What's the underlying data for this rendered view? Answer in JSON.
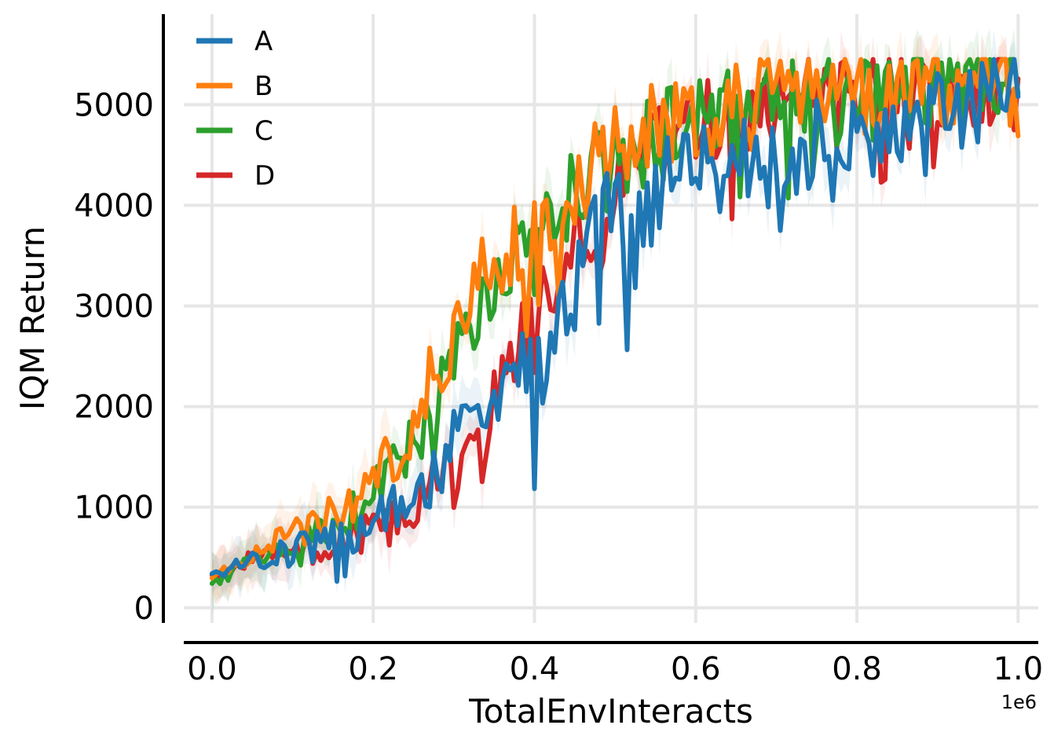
{
  "chart_data": {
    "type": "line",
    "xlabel": "TotalEnvInteracts",
    "ylabel": "IQM Return",
    "x_offset_label": "1e6",
    "xlim": [
      -0.035,
      1.025
    ],
    "ylim": [
      -150,
      5900
    ],
    "x_ticks": [
      0.0,
      0.2,
      0.4,
      0.6,
      0.8,
      1.0
    ],
    "x_tick_labels": [
      "0.0",
      "0.2",
      "0.4",
      "0.6",
      "0.8",
      "1.0"
    ],
    "y_ticks": [
      0,
      1000,
      2000,
      3000,
      4000,
      5000
    ],
    "y_tick_labels": [
      "0",
      "1000",
      "2000",
      "3000",
      "4000",
      "5000"
    ],
    "grid": true,
    "legend_position": "top-left",
    "series": [
      {
        "name": "A",
        "color": "#1f77b4",
        "x": [
          0.0,
          0.05,
          0.1,
          0.15,
          0.18,
          0.2,
          0.22,
          0.25,
          0.28,
          0.3,
          0.32,
          0.35,
          0.38,
          0.4,
          0.42,
          0.45,
          0.48,
          0.5,
          0.52,
          0.55,
          0.58,
          0.6,
          0.62,
          0.65,
          0.68,
          0.7,
          0.72,
          0.75,
          0.78,
          0.8,
          0.82,
          0.85,
          0.88,
          0.9,
          0.92,
          0.95,
          0.98,
          1.0
        ],
        "y": [
          330,
          460,
          560,
          700,
          760,
          1000,
          950,
          1250,
          1350,
          1700,
          1700,
          1800,
          2500,
          2200,
          2700,
          3100,
          3800,
          4050,
          3500,
          4100,
          4400,
          4500,
          4200,
          4400,
          4500,
          4650,
          4400,
          4600,
          4350,
          4700,
          4650,
          4800,
          4700,
          4900,
          4850,
          5000,
          5100,
          5400
        ]
      },
      {
        "name": "B",
        "color": "#ff7f0e",
        "x": [
          0.0,
          0.05,
          0.1,
          0.15,
          0.18,
          0.2,
          0.22,
          0.25,
          0.27,
          0.3,
          0.32,
          0.35,
          0.38,
          0.4,
          0.42,
          0.45,
          0.48,
          0.5,
          0.52,
          0.55,
          0.58,
          0.6,
          0.62,
          0.65,
          0.68,
          0.7,
          0.72,
          0.75,
          0.78,
          0.8,
          0.82,
          0.85,
          0.88,
          0.9,
          0.92,
          0.95,
          0.98,
          1.0
        ],
        "y": [
          280,
          530,
          730,
          930,
          1100,
          1250,
          1500,
          1700,
          2300,
          2700,
          3100,
          3500,
          3700,
          3650,
          4000,
          4200,
          4400,
          4550,
          4700,
          4750,
          4800,
          4900,
          4850,
          4950,
          5000,
          5050,
          5000,
          5100,
          5050,
          5100,
          5150,
          5200,
          5150,
          5200,
          5200,
          5250,
          5250,
          5100
        ]
      },
      {
        "name": "C",
        "color": "#2ca02c",
        "x": [
          0.0,
          0.05,
          0.1,
          0.15,
          0.18,
          0.2,
          0.22,
          0.25,
          0.28,
          0.3,
          0.32,
          0.35,
          0.38,
          0.4,
          0.42,
          0.45,
          0.48,
          0.5,
          0.52,
          0.55,
          0.58,
          0.6,
          0.62,
          0.65,
          0.68,
          0.7,
          0.72,
          0.75,
          0.78,
          0.8,
          0.82,
          0.85,
          0.88,
          0.9,
          0.92,
          0.95,
          0.98,
          1.0
        ],
        "y": [
          220,
          500,
          650,
          800,
          950,
          1200,
          1350,
          1650,
          2100,
          2400,
          2800,
          3300,
          3600,
          3500,
          3800,
          4100,
          4350,
          4450,
          4600,
          4650,
          4750,
          4850,
          4800,
          4950,
          4950,
          5050,
          5000,
          5050,
          5050,
          5100,
          5100,
          5200,
          5150,
          5200,
          5150,
          5250,
          5000,
          5300
        ]
      },
      {
        "name": "D",
        "color": "#d62728",
        "x": [
          0.0,
          0.05,
          0.1,
          0.15,
          0.18,
          0.2,
          0.22,
          0.25,
          0.28,
          0.3,
          0.32,
          0.35,
          0.38,
          0.4,
          0.42,
          0.45,
          0.48,
          0.5,
          0.52,
          0.55,
          0.58,
          0.6,
          0.62,
          0.65,
          0.68,
          0.7,
          0.72,
          0.75,
          0.78,
          0.8,
          0.82,
          0.85,
          0.88,
          0.9,
          0.92,
          0.95,
          0.98,
          1.0
        ],
        "y": [
          300,
          480,
          580,
          650,
          750,
          820,
          900,
          1100,
          1250,
          1350,
          1500,
          2000,
          2600,
          2900,
          3200,
          3500,
          3600,
          4100,
          4300,
          4500,
          4650,
          4800,
          4850,
          4950,
          4950,
          5000,
          5100,
          5150,
          5150,
          5150,
          5200,
          5200,
          5250,
          5200,
          5250,
          5250,
          5250,
          4950
        ]
      }
    ]
  }
}
